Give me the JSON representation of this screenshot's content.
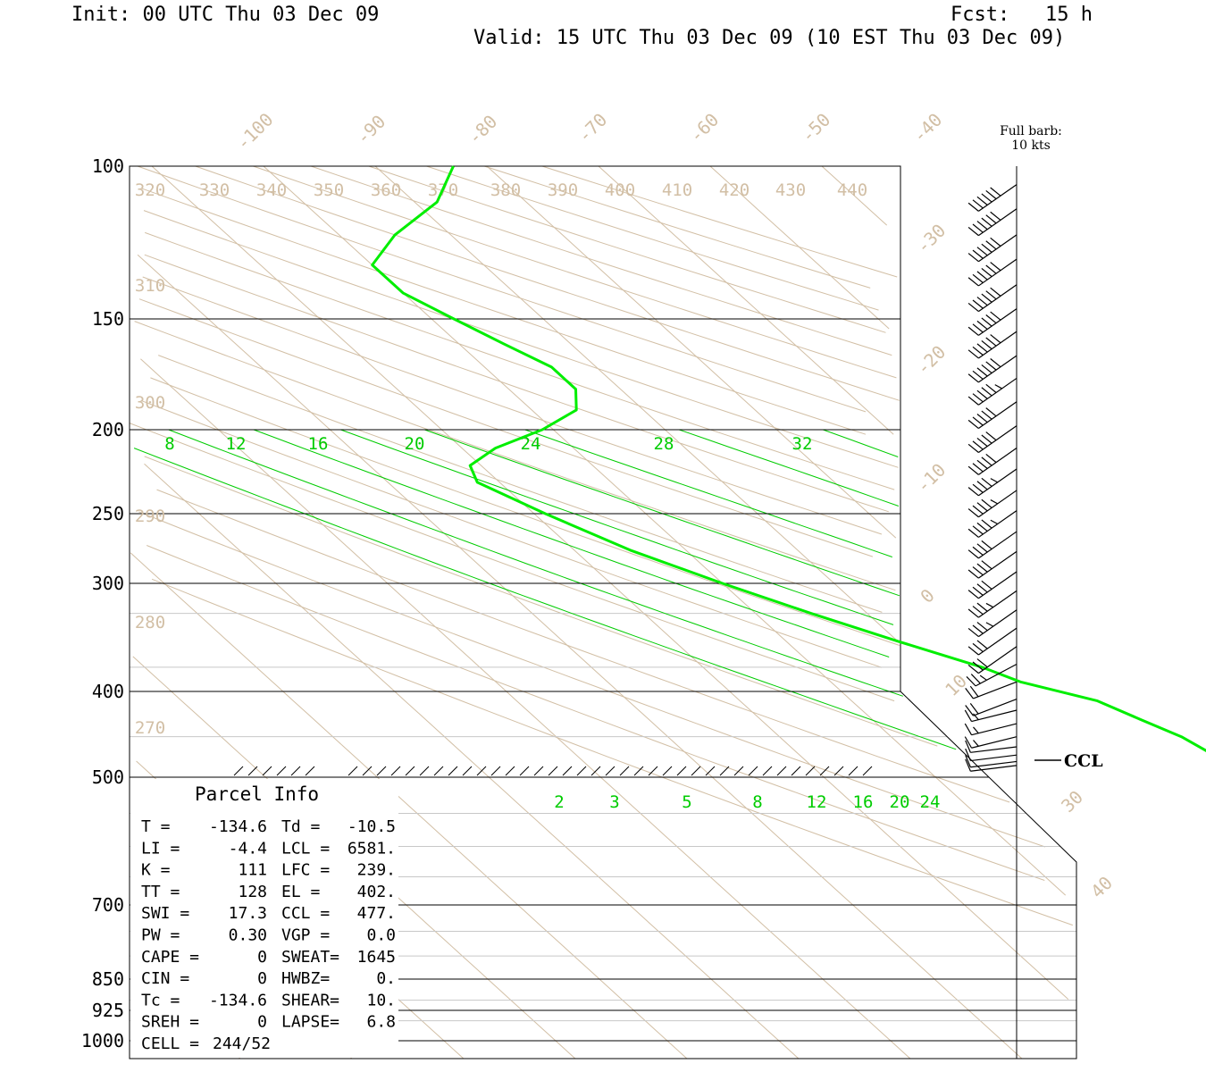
{
  "header": {
    "init": "Init: 00 UTC Thu 03 Dec 09",
    "fcst": "Fcst:   15 h",
    "valid": "Valid: 15 UTC Thu 03 Dec 09 (10 EST Thu 03 Dec 09)"
  },
  "barb_legend": {
    "line1": "Full barb:",
    "line2": "10 kts"
  },
  "ccl_label": "CCL",
  "chart_data": {
    "type": "line",
    "title": "",
    "pressure_labels": [
      "100",
      "150",
      "200",
      "250",
      "300",
      "400",
      "500",
      "700",
      "850",
      "925",
      "1000"
    ],
    "pressure_levels": [
      100,
      150,
      200,
      250,
      300,
      400,
      500,
      700,
      850,
      925,
      1000
    ],
    "isotherm_labels": [
      "-100",
      "-90",
      "-80",
      "-70",
      "-60",
      "-50",
      "-40",
      "-30",
      "-20",
      "-10",
      "0",
      "10",
      "30",
      "40"
    ],
    "isotherm_values": [
      -100,
      -90,
      -80,
      -70,
      -60,
      -50,
      -40,
      -30,
      -20,
      -10,
      0,
      10,
      30,
      40
    ],
    "theta_top_labels": [
      "320",
      "330",
      "340",
      "350",
      "360",
      "370",
      "380",
      "390",
      "400",
      "410",
      "420",
      "430",
      "440"
    ],
    "theta_top_values": [
      320,
      330,
      340,
      350,
      360,
      370,
      380,
      390,
      400,
      410,
      420,
      430,
      440
    ],
    "theta_side_labels": [
      "310",
      "300",
      "290",
      "280",
      "270"
    ],
    "theta_side_values": [
      310,
      300,
      290,
      280,
      270
    ],
    "theta_e_labels": [
      "8",
      "12",
      "16",
      "20",
      "24",
      "28",
      "32"
    ],
    "theta_e_values": [
      8,
      12,
      16,
      20,
      24,
      28,
      32
    ],
    "mixing_ratio_labels": [
      "2",
      "3",
      "5",
      "8",
      "12",
      "16",
      "20",
      "24"
    ],
    "mixing_ratio_values": [
      2,
      3,
      5,
      8,
      12,
      16,
      20,
      24
    ],
    "series": [
      {
        "color": "#00ee00",
        "points": [
          [
            100,
            -43
          ],
          [
            110,
            -48
          ],
          [
            120,
            -55
          ],
          [
            130,
            -60
          ],
          [
            140,
            -60
          ],
          [
            150,
            -58
          ],
          [
            160,
            -56
          ],
          [
            170,
            -54
          ],
          [
            180,
            -54
          ],
          [
            190,
            -56
          ],
          [
            200,
            -61
          ],
          [
            210,
            -67
          ],
          [
            220,
            -71
          ],
          [
            230,
            -72
          ],
          [
            250,
            -69
          ],
          [
            275,
            -65
          ],
          [
            300,
            -60
          ],
          [
            325,
            -55
          ],
          [
            350,
            -50
          ],
          [
            375,
            -45
          ],
          [
            390,
            -43
          ],
          [
            410,
            -38
          ],
          [
            430,
            -36
          ],
          [
            450,
            -34
          ],
          [
            470,
            -33
          ],
          [
            485,
            -32
          ]
        ]
      }
    ],
    "wind_barbs": {
      "pressure": [
        105,
        112,
        120,
        128,
        137,
        146,
        155,
        165,
        175,
        186,
        198,
        210,
        222,
        235,
        248,
        262,
        276,
        291,
        306,
        322,
        338,
        355,
        372,
        390,
        408,
        420,
        435,
        450,
        462,
        472,
        480,
        485
      ],
      "speed_kts": [
        60,
        60,
        60,
        60,
        60,
        60,
        60,
        60,
        55,
        50,
        50,
        50,
        45,
        45,
        45,
        40,
        40,
        40,
        35,
        35,
        30,
        30,
        25,
        20,
        20,
        15,
        15,
        15,
        10,
        10,
        10,
        10
      ]
    },
    "parcel_info": {
      "title": "Parcel Info",
      "rows": [
        {
          "k1": "T  =",
          "v1": "-134.6",
          "k2": "Td =",
          "v2": "-10.5"
        },
        {
          "k1": "LI =",
          "v1": "-4.4",
          "k2": "LCL =",
          "v2": "6581."
        },
        {
          "k1": "K  =",
          "v1": "111",
          "k2": "LFC =",
          "v2": "239."
        },
        {
          "k1": "TT =",
          "v1": "128",
          "k2": "EL  =",
          "v2": "402."
        },
        {
          "k1": "SWI =",
          "v1": "17.3",
          "k2": "CCL =",
          "v2": "477."
        },
        {
          "k1": "PW =",
          "v1": "0.30",
          "k2": "VGP =",
          "v2": "0.0"
        },
        {
          "k1": "CAPE =",
          "v1": "0",
          "k2": "SWEAT=",
          "v2": "1645"
        },
        {
          "k1": "CIN =",
          "v1": "0",
          "k2": "HWBZ=",
          "v2": "0."
        },
        {
          "k1": "Tc =",
          "v1": "-134.6",
          "k2": "SHEAR=",
          "v2": "10."
        },
        {
          "k1": "SREH =",
          "v1": "0",
          "k2": "LAPSE=",
          "v2": "6.8"
        },
        {
          "k1": "CELL =",
          "v1": "244/52",
          "k2": "",
          "v2": ""
        }
      ]
    }
  }
}
